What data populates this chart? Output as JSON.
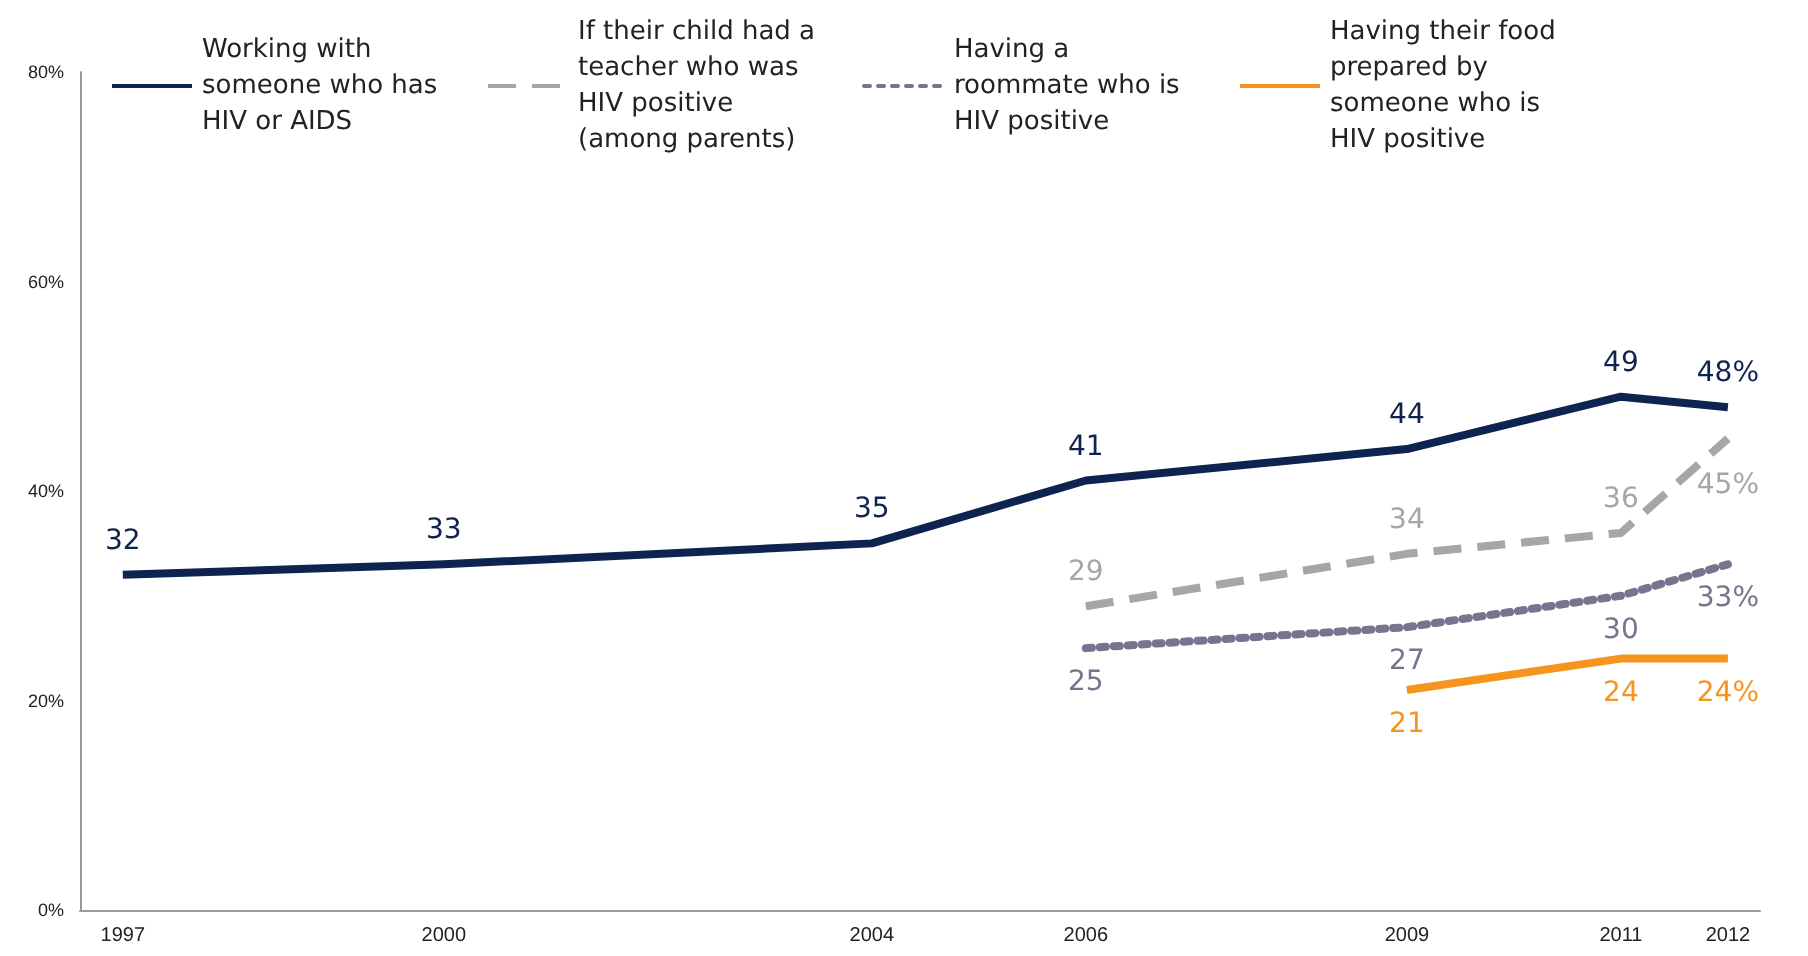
{
  "chart_data": {
    "type": "line",
    "xlim": [
      1996.6,
      2012.3
    ],
    "xticks": [
      1997,
      2000,
      2004,
      2006,
      2009,
      2011,
      2012
    ],
    "ylim": [
      0,
      80
    ],
    "yticks": [
      {
        "value": 0,
        "label": "0%"
      },
      {
        "value": 20,
        "label": "20%"
      },
      {
        "value": 40,
        "label": "40%"
      },
      {
        "value": 60,
        "label": "60%"
      },
      {
        "value": 80,
        "label": "80%"
      }
    ],
    "grid": false,
    "legend": "top",
    "marker": "none",
    "series": [
      {
        "name": "Working with someone who has HIV or AIDS",
        "color": "#0f2350",
        "line_style": "solid",
        "x": [
          1997,
          2000,
          2004,
          2006,
          2009,
          2011,
          2012
        ],
        "values": [
          32,
          33,
          35,
          41,
          44,
          49,
          48
        ],
        "value_labels": [
          "32",
          "33",
          "35",
          "41",
          "44",
          "49",
          "48%"
        ]
      },
      {
        "name": "If their child had a teacher who was HIV positive (among parents)",
        "color": "#a6a6a6",
        "line_style": "dashed",
        "x": [
          2006,
          2009,
          2011,
          2012
        ],
        "values": [
          29,
          34,
          36,
          45
        ],
        "value_labels": [
          "29",
          "34",
          "36",
          "45%"
        ]
      },
      {
        "name": "Having a roommate who is HIV positive",
        "color": "#76758f",
        "line_style": "dotted",
        "x": [
          2006,
          2009,
          2011,
          2012
        ],
        "values": [
          25,
          27,
          30,
          33
        ],
        "value_labels": [
          "25",
          "27",
          "30",
          "33%"
        ]
      },
      {
        "name": "Having their food prepared by someone who is HIV positive",
        "color": "#f7941d",
        "line_style": "solid",
        "x": [
          2009,
          2011,
          2012
        ],
        "values": [
          21,
          24,
          24
        ],
        "value_labels": [
          "21",
          "24",
          "24%"
        ]
      }
    ]
  }
}
